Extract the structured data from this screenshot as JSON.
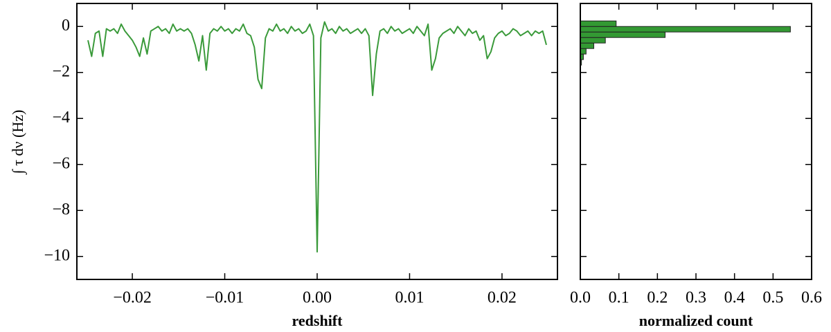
{
  "chart_data": [
    {
      "type": "line",
      "xlabel": "redshift",
      "ylabel": "∫ τ dν (Hz)",
      "xlim": [
        -0.026,
        0.026
      ],
      "ylim": [
        -11,
        1
      ],
      "xticks": [
        {
          "value": -0.02,
          "label": "−0.02"
        },
        {
          "value": -0.01,
          "label": "−0.01"
        },
        {
          "value": 0,
          "label": "0.00"
        },
        0.01,
        0.02
      ],
      "yticks": [
        0,
        {
          "value": -2,
          "label": "−2"
        },
        {
          "value": -4,
          "label": "−4"
        },
        {
          "value": -6,
          "label": "−6"
        },
        {
          "value": -8,
          "label": "−8"
        },
        {
          "value": -10,
          "label": "−10"
        }
      ],
      "x": [
        -0.0248,
        -0.0244,
        -0.024,
        -0.0236,
        -0.0232,
        -0.0228,
        -0.0224,
        -0.022,
        -0.0216,
        -0.0212,
        -0.0208,
        -0.0204,
        -0.02,
        -0.0196,
        -0.0192,
        -0.0188,
        -0.0184,
        -0.018,
        -0.0176,
        -0.0172,
        -0.0168,
        -0.0164,
        -0.016,
        -0.0156,
        -0.0152,
        -0.0148,
        -0.0144,
        -0.014,
        -0.0136,
        -0.0132,
        -0.0128,
        -0.0124,
        -0.012,
        -0.0116,
        -0.0112,
        -0.0108,
        -0.0104,
        -0.01,
        -0.0096,
        -0.0092,
        -0.0088,
        -0.0084,
        -0.008,
        -0.0076,
        -0.0072,
        -0.0068,
        -0.0064,
        -0.006,
        -0.0056,
        -0.0052,
        -0.0048,
        -0.0044,
        -0.004,
        -0.0036,
        -0.0032,
        -0.0028,
        -0.0024,
        -0.002,
        -0.0016,
        -0.0012,
        -0.0008,
        -0.0004,
        0,
        0.0004,
        0.0008,
        0.0012,
        0.0016,
        0.002,
        0.0024,
        0.0028,
        0.0032,
        0.0036,
        0.004,
        0.0044,
        0.0048,
        0.0052,
        0.0056,
        0.006,
        0.0064,
        0.0068,
        0.0072,
        0.0076,
        0.008,
        0.0084,
        0.0088,
        0.0092,
        0.0096,
        0.01,
        0.0104,
        0.0108,
        0.0112,
        0.0116,
        0.012,
        0.0124,
        0.0128,
        0.0132,
        0.0136,
        0.014,
        0.0144,
        0.0148,
        0.0152,
        0.0156,
        0.016,
        0.0164,
        0.0168,
        0.0172,
        0.0176,
        0.018,
        0.0184,
        0.0188,
        0.0192,
        0.0196,
        0.02,
        0.0204,
        0.0208,
        0.0212,
        0.0216,
        0.022,
        0.0224,
        0.0228,
        0.0232,
        0.0236,
        0.024,
        0.0244,
        0.0248
      ],
      "series": [
        {
          "color": "#3a9a3a",
          "values": [
            -0.6,
            -1.3,
            -0.3,
            -0.2,
            -1.3,
            -0.1,
            -0.2,
            -0.1,
            -0.3,
            0.1,
            -0.2,
            -0.4,
            -0.6,
            -0.9,
            -1.3,
            -0.5,
            -1.2,
            -0.2,
            -0.1,
            0.0,
            -0.2,
            -0.1,
            -0.3,
            0.1,
            -0.2,
            -0.1,
            -0.2,
            -0.1,
            -0.3,
            -0.8,
            -1.5,
            -0.4,
            -1.9,
            -0.3,
            -0.1,
            -0.2,
            0.0,
            -0.2,
            -0.1,
            -0.3,
            -0.1,
            -0.2,
            0.1,
            -0.3,
            -0.4,
            -0.9,
            -2.3,
            -2.7,
            -0.5,
            -0.1,
            -0.2,
            0.1,
            -0.2,
            -0.1,
            -0.3,
            0.0,
            -0.2,
            -0.1,
            -0.3,
            -0.2,
            0.1,
            -0.4,
            -9.8,
            -0.5,
            0.2,
            -0.2,
            -0.1,
            -0.3,
            0.0,
            -0.2,
            -0.1,
            -0.3,
            -0.2,
            -0.1,
            -0.3,
            -0.1,
            -0.4,
            -3.0,
            -1.2,
            -0.2,
            -0.1,
            -0.3,
            0.0,
            -0.2,
            -0.1,
            -0.3,
            -0.2,
            -0.1,
            -0.3,
            0.0,
            -0.2,
            -0.4,
            0.1,
            -1.9,
            -1.4,
            -0.5,
            -0.3,
            -0.2,
            -0.1,
            -0.3,
            0.0,
            -0.2,
            -0.4,
            -0.1,
            -0.3,
            -0.2,
            -0.6,
            -0.4,
            -1.4,
            -1.1,
            -0.5,
            -0.3,
            -0.2,
            -0.4,
            -0.3,
            -0.1,
            -0.2,
            -0.4,
            -0.3,
            -0.2,
            -0.4,
            -0.2,
            -0.3,
            -0.2,
            -0.8
          ]
        }
      ]
    },
    {
      "type": "histogram",
      "orientation": "horizontal",
      "xlabel": "normalized count",
      "xlim": [
        0,
        0.6
      ],
      "xticks": [
        {
          "value": 0,
          "label": "0.0"
        },
        0.1,
        0.2,
        0.3,
        0.4,
        0.5,
        0.6
      ],
      "color": "#339933",
      "bins": [
        -1.68,
        -1.44,
        -1.2,
        -0.96,
        -0.72,
        -0.48,
        -0.24,
        0,
        0.24
      ],
      "counts": [
        0.003,
        0.008,
        0.015,
        0.035,
        0.065,
        0.22,
        0.545,
        0.093
      ]
    }
  ]
}
